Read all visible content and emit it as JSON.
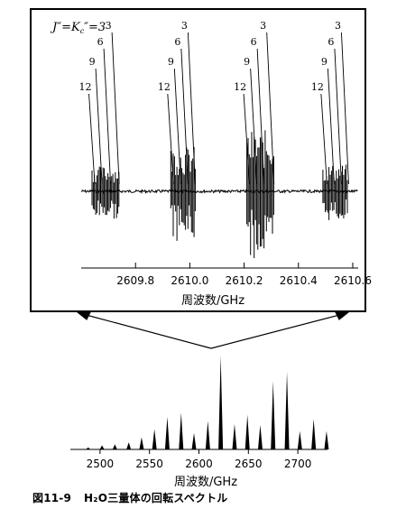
{
  "chart_data": [
    {
      "type": "line",
      "title": "",
      "annotation": "J″=K_c″=3",
      "annotation_text": "J″=K″=3",
      "annotation_parts": {
        "j": "J″=",
        "k": "K",
        "sub": "c",
        "rest": "″=3"
      },
      "xlabel": "周波数/GHz",
      "xlim": [
        2609.6,
        2610.62
      ],
      "x_ticks": [
        2609.8,
        2610.0,
        2610.2,
        2610.4,
        2610.6
      ],
      "x_tick_labels": [
        "2609.8",
        "2610.0",
        "2610.2",
        "2610.4",
        "2610.6"
      ],
      "groups": [
        {
          "labels": [
            {
              "text": "12",
              "x": 2609.65
            },
            {
              "text": "9",
              "x": 2609.67
            },
            {
              "text": "6",
              "x": 2609.695
            },
            {
              "text": "3",
              "x": 2609.72
            }
          ]
        },
        {
          "labels": [
            {
              "text": "12",
              "x": 2609.94
            },
            {
              "text": "9",
              "x": 2609.96
            },
            {
              "text": "6",
              "x": 2609.98
            },
            {
              "text": "3",
              "x": 2610.0
            }
          ]
        },
        {
          "labels": [
            {
              "text": "12",
              "x": 2610.22
            },
            {
              "text": "9",
              "x": 2610.24
            },
            {
              "text": "6",
              "x": 2610.26
            },
            {
              "text": "3",
              "x": 2610.29
            }
          ]
        },
        {
          "labels": [
            {
              "text": "12",
              "x": 2610.505
            },
            {
              "text": "9",
              "x": 2610.525
            },
            {
              "text": "6",
              "x": 2610.545
            },
            {
              "text": "3",
              "x": 2610.565
            }
          ]
        }
      ]
    },
    {
      "type": "bar",
      "title": "",
      "xlabel": "周波数/GHz",
      "xlim": [
        2470,
        2730
      ],
      "x_ticks": [
        2500,
        2550,
        2600,
        2650,
        2700
      ],
      "x_tick_labels": [
        "2500",
        "2550",
        "2600",
        "2650",
        "2700"
      ],
      "ylim": [
        0,
        1
      ],
      "x": [
        2488,
        2502,
        2515,
        2529,
        2542,
        2555,
        2568,
        2582,
        2595,
        2609,
        2622,
        2636,
        2649,
        2662,
        2675,
        2689,
        2702,
        2716,
        2729
      ],
      "values": [
        0.02,
        0.04,
        0.05,
        0.07,
        0.12,
        0.2,
        0.32,
        0.36,
        0.16,
        0.28,
        0.92,
        0.25,
        0.34,
        0.24,
        0.67,
        0.76,
        0.18,
        0.3,
        0.18
      ]
    }
  ],
  "caption": {
    "number": "図11-9",
    "text": "H₂O三量体の回転スペクトル"
  }
}
